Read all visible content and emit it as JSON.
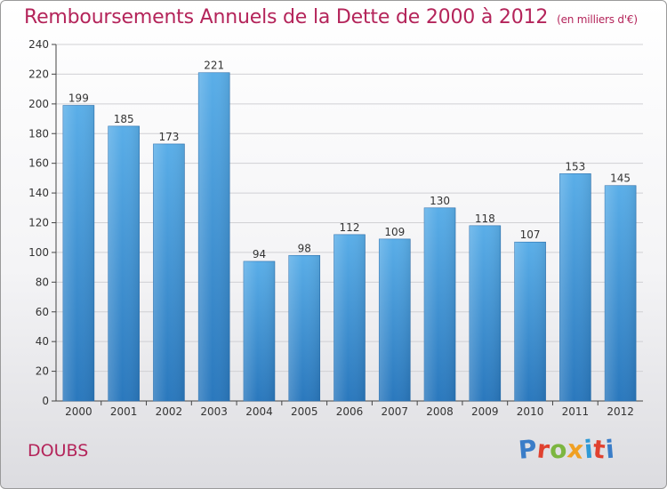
{
  "chart_data": {
    "type": "bar",
    "title": "Remboursements Annuels de la Dette de 2000 à 2012",
    "subtitle": "(en milliers d'€)",
    "categories": [
      "2000",
      "2001",
      "2002",
      "2003",
      "2004",
      "2005",
      "2006",
      "2007",
      "2008",
      "2009",
      "2010",
      "2011",
      "2012"
    ],
    "values": [
      199,
      185,
      173,
      221,
      94,
      98,
      112,
      109,
      130,
      118,
      107,
      153,
      145
    ],
    "ylim": [
      0,
      240
    ],
    "yticks": [
      0,
      20,
      40,
      60,
      80,
      100,
      120,
      140,
      160,
      180,
      200,
      220,
      240
    ],
    "grid": true,
    "bar_color": "#4a9fdc",
    "bar_color_dark": "#2a78bd"
  },
  "region_label": "DOUBS",
  "logo": {
    "text": "Proxiti",
    "letter_colors": [
      "#3a7dc8",
      "#e0412f",
      "#7cb640",
      "#f0a023",
      "#2f9ad6",
      "#e0412f",
      "#3a7dc8"
    ]
  }
}
